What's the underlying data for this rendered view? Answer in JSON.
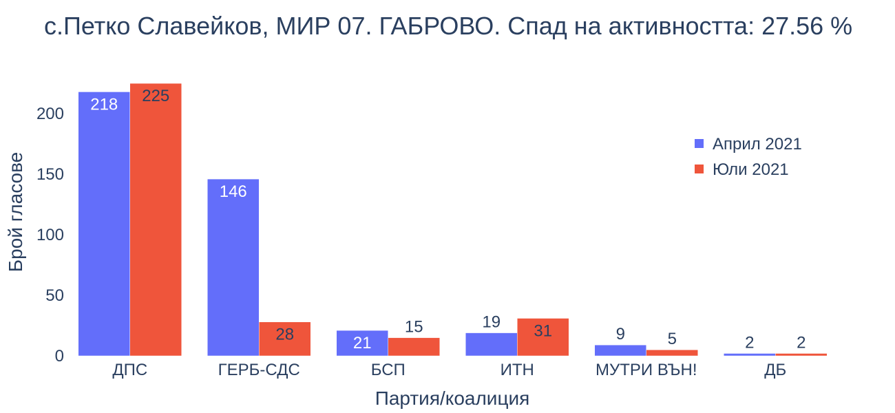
{
  "chart_data": {
    "type": "bar",
    "title": "с.Петко Славейков, МИР 07. ГАБРОВО. Спад на активността: 27.56 %",
    "xlabel": "Партия/коалиция",
    "ylabel": "Брой гласове",
    "categories": [
      "ДПС",
      "ГЕРБ-СДС",
      "БСП",
      "ИТН",
      "МУТРИ ВЪН!",
      "ДБ"
    ],
    "series": [
      {
        "name": "Април 2021",
        "color": "#636efa",
        "values": [
          218,
          146,
          21,
          19,
          9,
          2
        ]
      },
      {
        "name": "Юли 2021",
        "color": "#ef553b",
        "values": [
          225,
          28,
          15,
          31,
          5,
          2
        ]
      }
    ],
    "yticks": [
      0,
      50,
      100,
      150,
      200
    ],
    "ylim": [
      0,
      237
    ],
    "grid": false,
    "legend_position": "top-right"
  }
}
